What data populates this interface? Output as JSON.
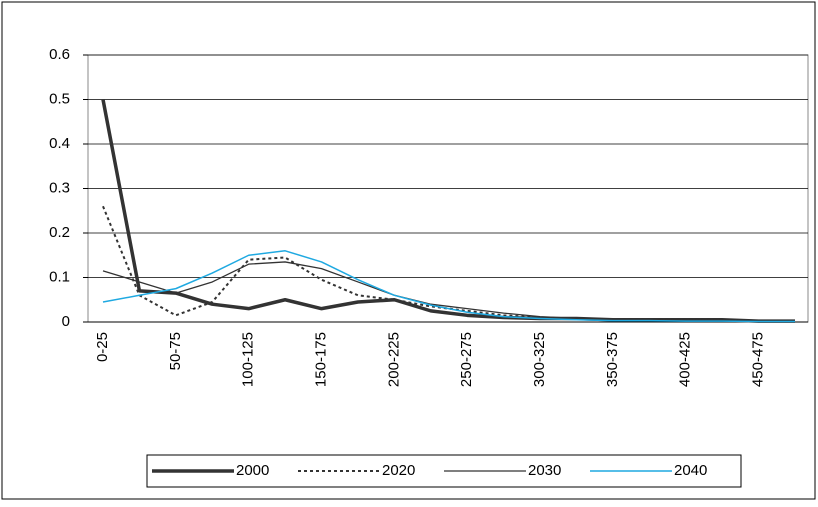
{
  "chart_data": {
    "type": "line",
    "categories": [
      "0-25",
      null,
      "50-75",
      null,
      "100-125",
      null,
      "150-175",
      null,
      "200-225",
      null,
      "250-275",
      null,
      "300-325",
      null,
      "350-375",
      null,
      "400-425",
      null,
      "450-475",
      null
    ],
    "series": [
      {
        "name": "2000",
        "color": "#333333",
        "line_width": 3.5,
        "dashed": false,
        "values": [
          0.5,
          0.07,
          0.065,
          0.04,
          0.03,
          0.05,
          0.03,
          0.045,
          0.05,
          0.025,
          0.015,
          0.01,
          0.008,
          0.008,
          0.005,
          0.005,
          0.005,
          0.005,
          0.002,
          0.002
        ]
      },
      {
        "name": "2020",
        "color": "#333333",
        "line_width": 2,
        "dashed": true,
        "values": [
          0.26,
          0.06,
          0.015,
          0.045,
          0.14,
          0.145,
          0.095,
          0.06,
          0.05,
          0.035,
          0.025,
          0.015,
          0.01,
          0.008,
          0.005,
          0.005,
          0.005,
          0.005,
          0.002,
          0.002
        ]
      },
      {
        "name": "2030",
        "color": "#333333",
        "line_width": 1.3,
        "dashed": false,
        "values": [
          0.115,
          0.09,
          0.065,
          0.09,
          0.13,
          0.135,
          0.12,
          0.09,
          0.06,
          0.04,
          0.03,
          0.02,
          0.012,
          0.008,
          0.005,
          0.005,
          0.003,
          0.003,
          0.002,
          0.001
        ]
      },
      {
        "name": "2040",
        "color": "#1fa9e1",
        "line_width": 1.5,
        "dashed": false,
        "values": [
          0.045,
          0.06,
          0.075,
          0.11,
          0.15,
          0.16,
          0.135,
          0.095,
          0.06,
          0.038,
          0.022,
          0.012,
          0.008,
          0.005,
          0.003,
          0.003,
          0.002,
          0.002,
          0.001,
          0.001
        ]
      }
    ],
    "ylim": [
      0,
      0.6
    ],
    "yticks": [
      0,
      0.1,
      0.2,
      0.3,
      0.4,
      0.5,
      0.6
    ],
    "grid": true,
    "legend": "bottom"
  }
}
